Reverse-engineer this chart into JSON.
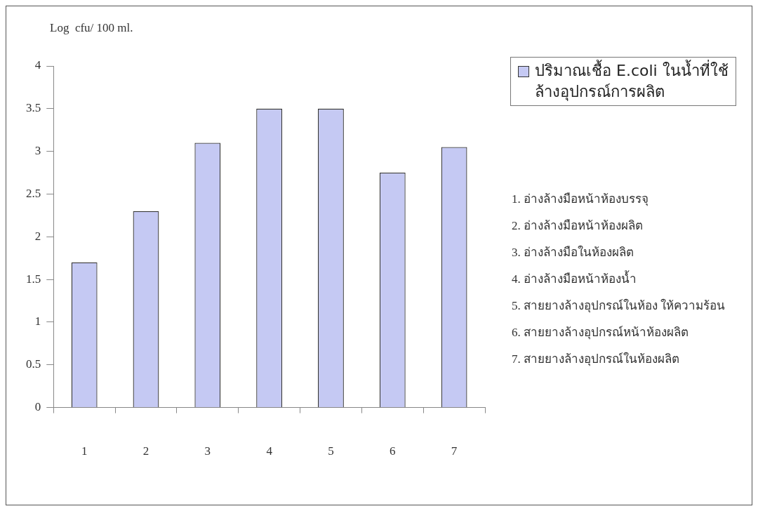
{
  "chart_data": {
    "type": "bar",
    "ylabel": "Log  cfu/ 100 ml.",
    "categories": [
      "1",
      "2",
      "3",
      "4",
      "5",
      "6",
      "7"
    ],
    "series": [
      {
        "name": "ปริมาณเชื้อ E.coli ในน้ำที่ใช้ล้างอุปกรณ์การผลิต",
        "color": "#c5c9f3",
        "values": [
          1.7,
          2.3,
          3.1,
          3.5,
          3.5,
          2.75,
          3.05
        ]
      }
    ],
    "ylim": [
      0,
      4
    ],
    "yticks": [
      0,
      0.5,
      1,
      1.5,
      2,
      2.5,
      3,
      3.5,
      4
    ],
    "grid": false,
    "legend": "top right",
    "annotations": [
      "1. อ่างล้างมือหน้าห้องบรรจุ",
      "2. อ่างล้างมือหน้าห้องผลิต",
      "3. อ่างล้างมือในห้องผลิต",
      "4. อ่างล้างมือหน้าห้องน้ำ",
      "5. สายยางล้างอุปกรณ์ในห้อง ให้ความร้อน",
      "6. สายยางล้างอุปกรณ์หน้าห้องผลิต",
      "7. สายยางล้างอุปกรณ์ในห้องผลิต"
    ]
  }
}
